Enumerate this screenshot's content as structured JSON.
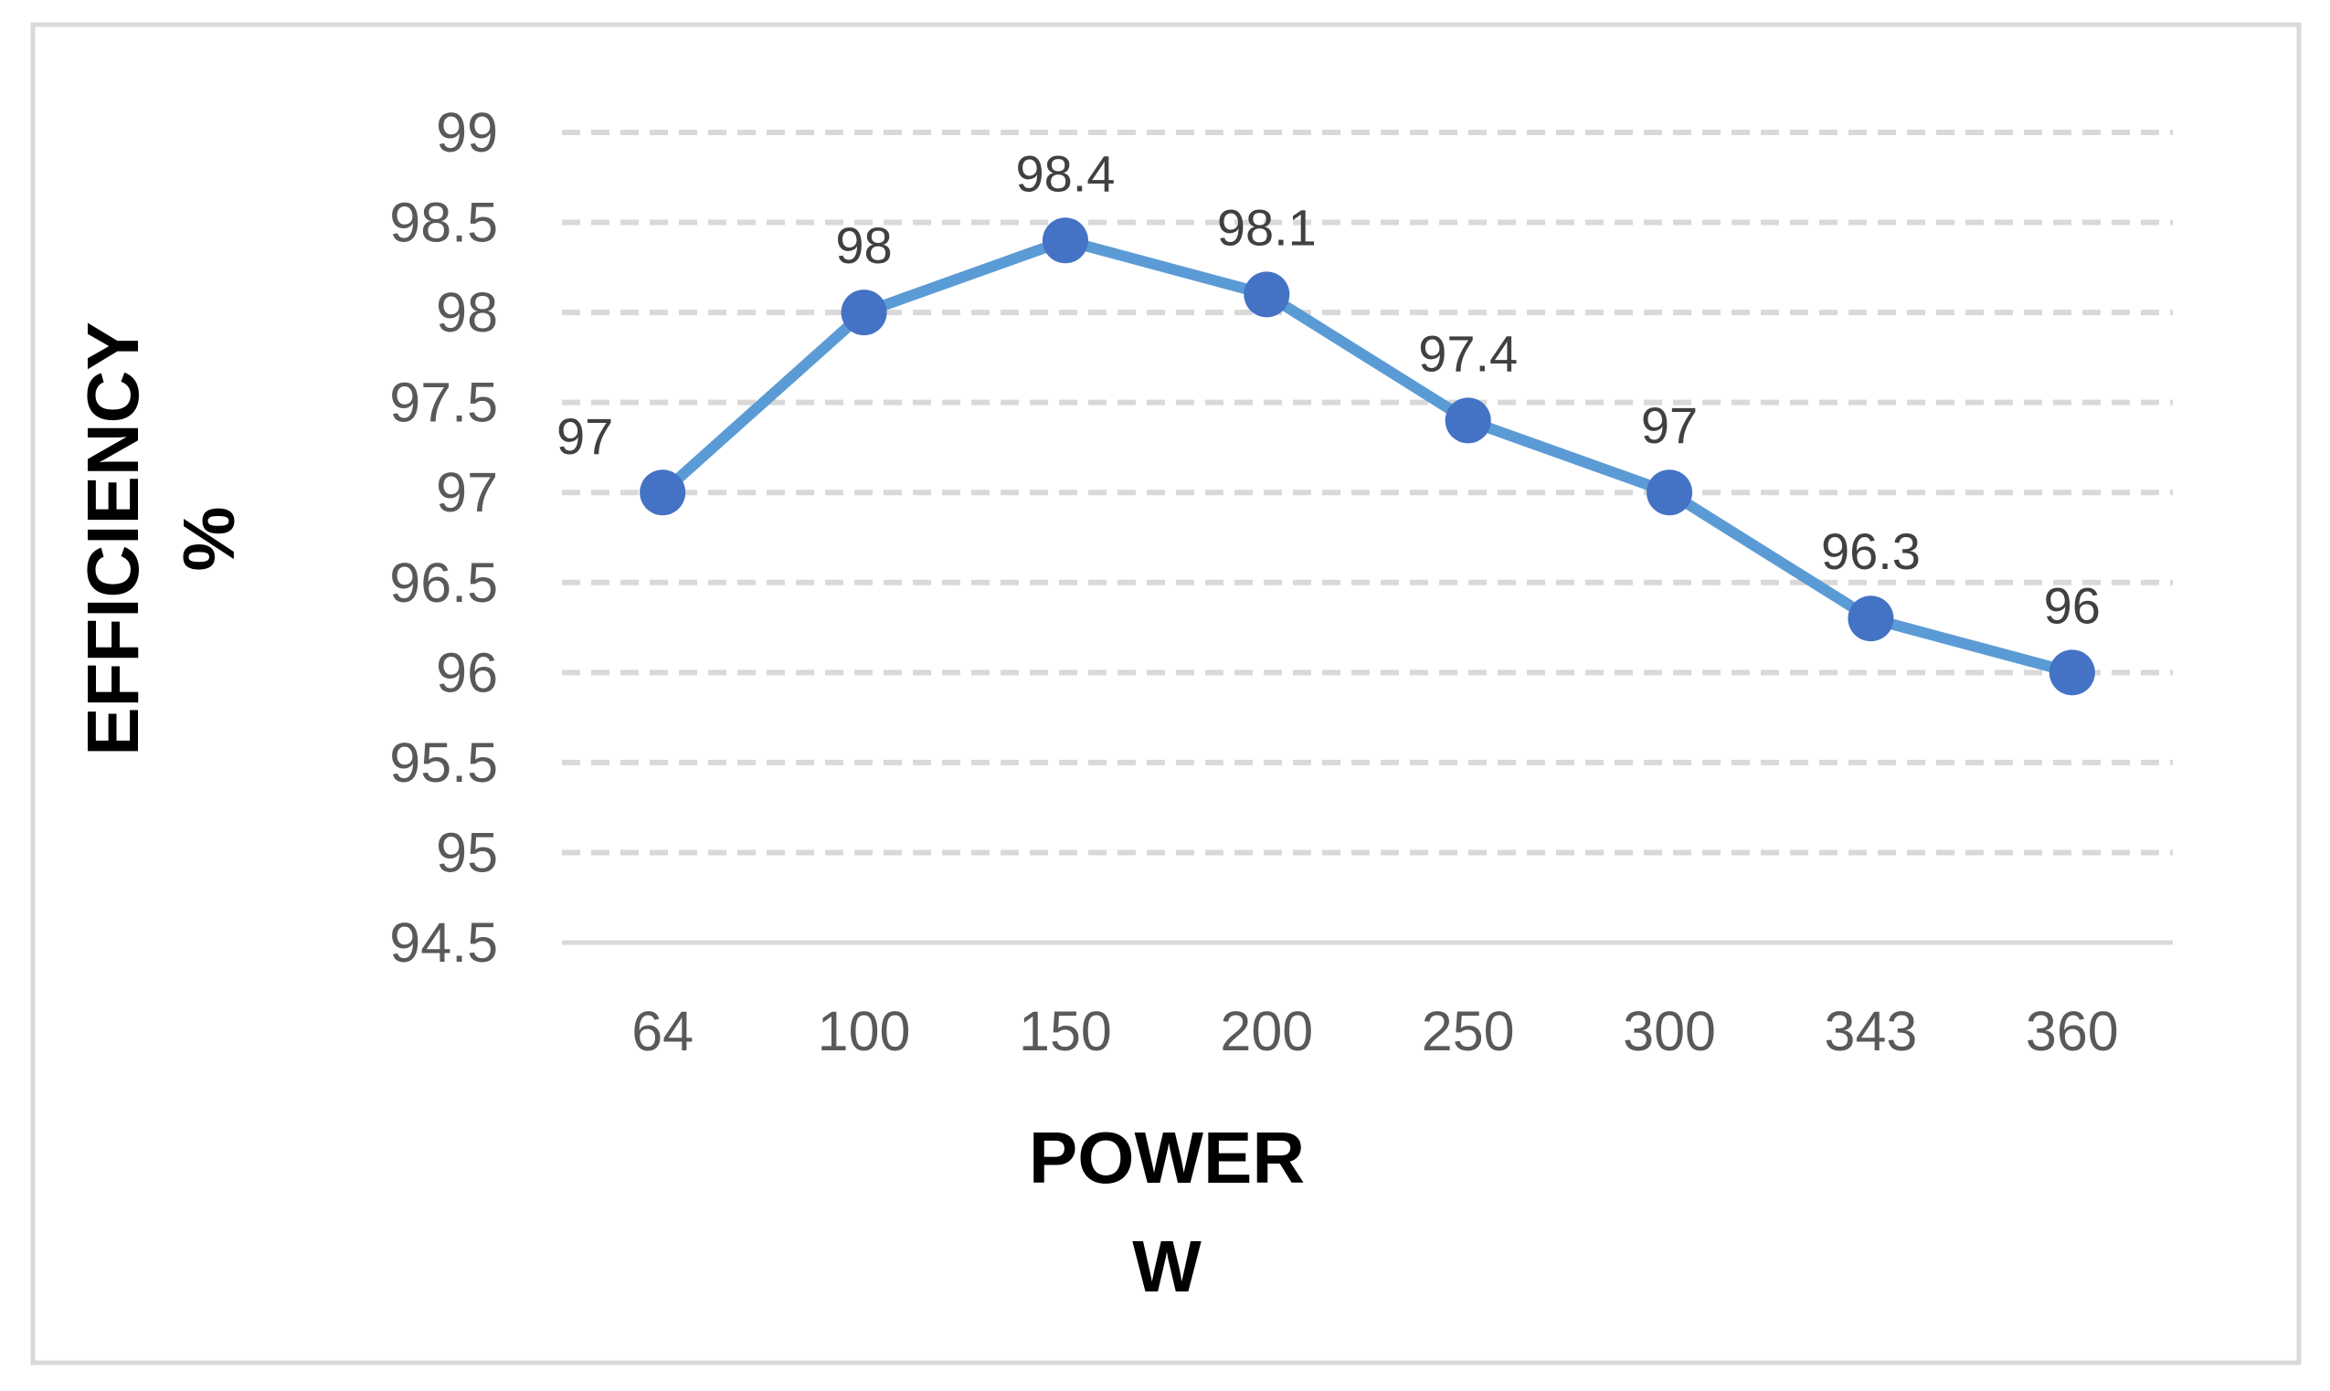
{
  "chart_data": {
    "type": "line",
    "title": "",
    "xlabel": [
      "POWER",
      "W"
    ],
    "ylabel": [
      "EFFICIENCY",
      "%"
    ],
    "categories": [
      "64",
      "100",
      "150",
      "200",
      "250",
      "300",
      "343",
      "360"
    ],
    "series": [
      {
        "values": [
          97,
          98,
          98.4,
          98.1,
          97.4,
          97,
          96.3,
          96
        ],
        "data_labels": [
          "97",
          "98",
          "98.4",
          "98.1",
          "97.4",
          "97",
          "96.3",
          "96"
        ],
        "line_color": "#5B9BD5",
        "marker_color": "#4472C4"
      }
    ],
    "ylim": [
      94.5,
      99
    ],
    "y_ticks": [
      "99",
      "98.5",
      "98",
      "97.5",
      "97",
      "96.5",
      "96",
      "95.5",
      "95",
      "94.5"
    ],
    "grid": "horizontal-dashed",
    "gridline_color": "#D9D9D9",
    "frame_color": "#D9D9D9",
    "legend": "none"
  }
}
